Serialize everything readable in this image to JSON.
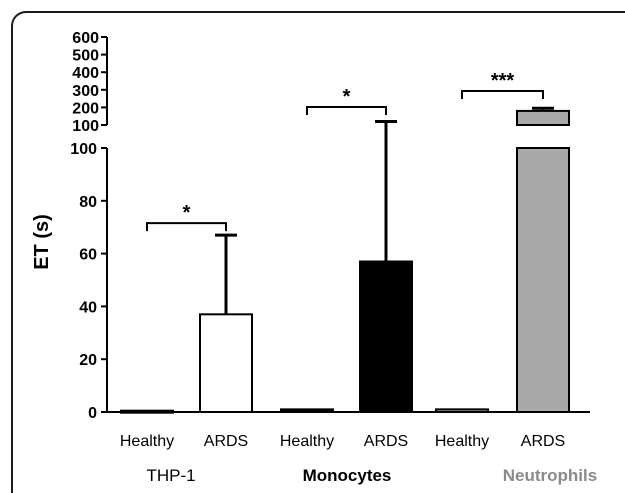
{
  "chart_data": {
    "type": "bar",
    "ylabel": "ET (s)",
    "yaxis_upper": {
      "range": [
        100,
        600
      ],
      "ticks": [
        "600",
        "500",
        "400",
        "300",
        "200",
        "100"
      ],
      "tick_values": [
        600,
        500,
        400,
        300,
        200,
        100
      ]
    },
    "yaxis_lower": {
      "range": [
        0,
        100
      ],
      "ticks": [
        "100",
        "80",
        "60",
        "40",
        "20",
        "0"
      ],
      "tick_values": [
        100,
        80,
        60,
        40,
        20,
        0
      ]
    },
    "categories": [
      "Healthy",
      "ARDS",
      "Healthy",
      "ARDS",
      "Healthy",
      "ARDS"
    ],
    "groups": [
      {
        "name": "THP-1",
        "color": "#000000",
        "bold": false
      },
      {
        "name": "Monocytes",
        "color": "#000000",
        "bold": true
      },
      {
        "name": "Neutrophils",
        "color": "#8a8a8a",
        "bold": true
      }
    ],
    "bars": [
      {
        "group": 0,
        "label": "Healthy",
        "value": 0.5,
        "error": 0,
        "fill": "#ffffff"
      },
      {
        "group": 0,
        "label": "ARDS",
        "value": 37,
        "error": 30,
        "fill": "#ffffff"
      },
      {
        "group": 1,
        "label": "Healthy",
        "value": 1,
        "error": 0,
        "fill": "#000000"
      },
      {
        "group": 1,
        "label": "ARDS",
        "value": 57,
        "error": 63,
        "fill": "#000000"
      },
      {
        "group": 2,
        "label": "Healthy",
        "value": 1,
        "error": 0,
        "fill": "#a9a9a9"
      },
      {
        "group": 2,
        "label": "ARDS",
        "value": 180,
        "error": 15,
        "fill": "#a9a9a9"
      }
    ],
    "significance": [
      {
        "from": 0,
        "to": 1,
        "label": "*"
      },
      {
        "from": 2,
        "to": 3,
        "label": "*"
      },
      {
        "from": 4,
        "to": 5,
        "label": "***"
      }
    ]
  }
}
